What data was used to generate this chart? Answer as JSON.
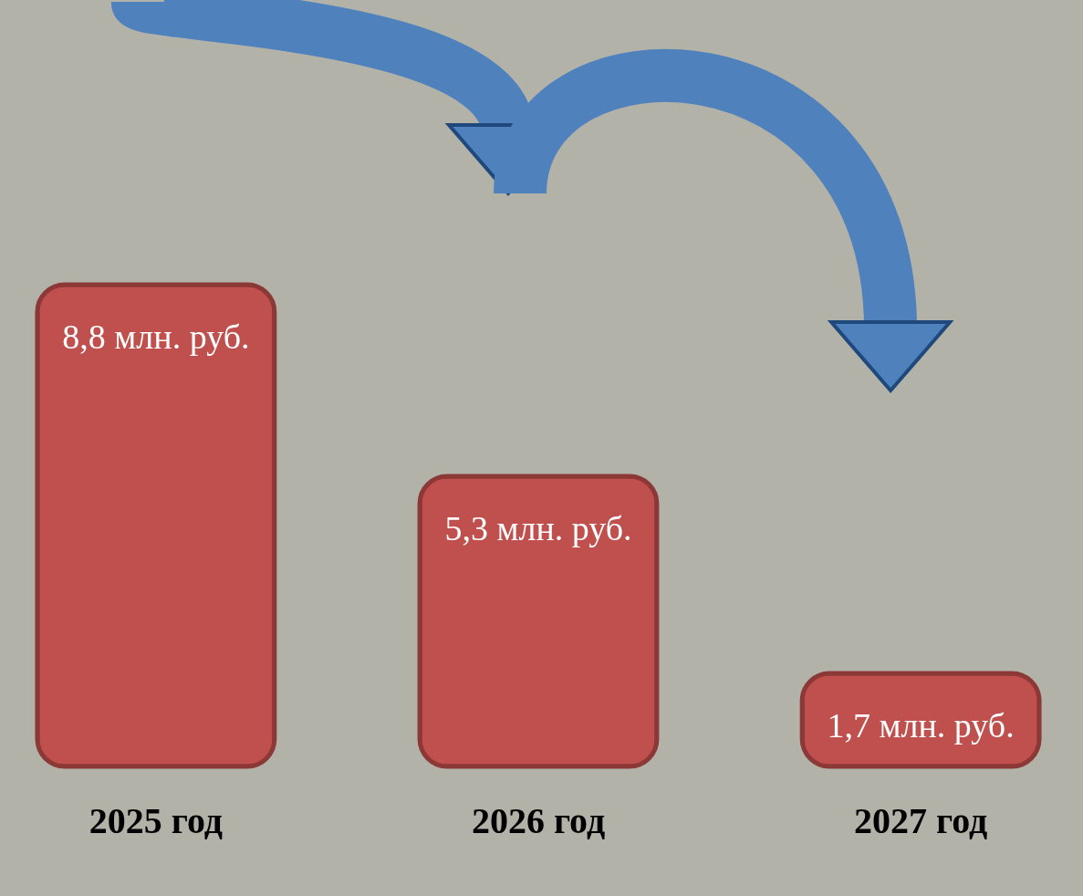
{
  "chart_data": {
    "type": "bar",
    "categories": [
      "2025 год",
      "2026 год",
      "2027 год"
    ],
    "values": [
      8.8,
      5.3,
      1.7
    ],
    "value_labels": [
      "8,8 млн. руб.",
      "5,3 млн. руб.",
      "1,7 млн. руб."
    ],
    "color": "#c0504d"
  }
}
